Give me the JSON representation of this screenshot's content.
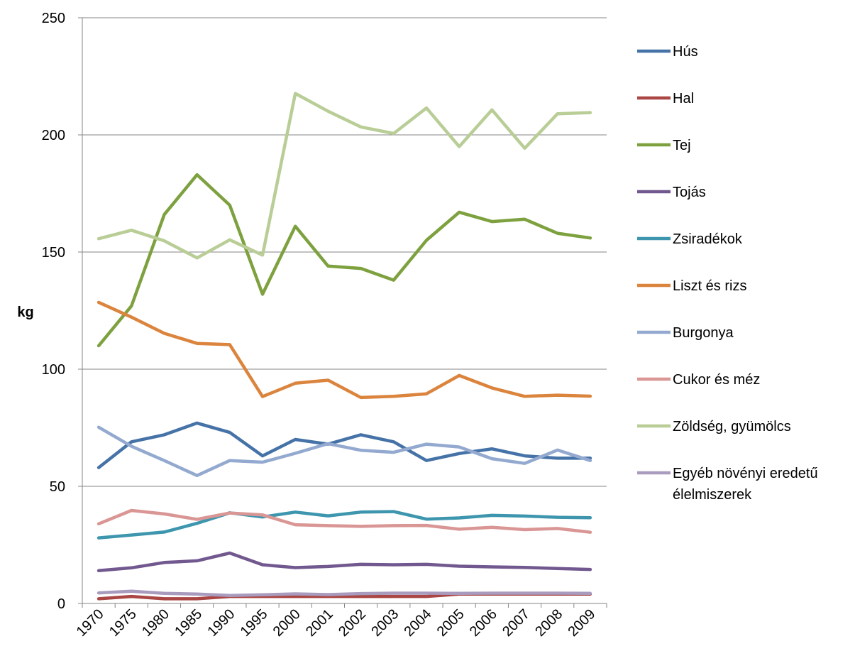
{
  "chart_data": {
    "type": "line",
    "ylabel": "kg",
    "xlabel": "",
    "ylim": [
      0,
      250
    ],
    "yticks": [
      0,
      50,
      100,
      150,
      200,
      250
    ],
    "categories": [
      "1970",
      "1975",
      "1980",
      "1985",
      "1990",
      "1995",
      "2000",
      "2001",
      "2002",
      "2003",
      "2004",
      "2005",
      "2006",
      "2007",
      "2008",
      "2009"
    ],
    "grid": "horizontal",
    "legend_position": "right",
    "series": [
      {
        "name": "Hús",
        "color": "#4572A7",
        "values": [
          58,
          69,
          72,
          77,
          73,
          63,
          70,
          68,
          72,
          69,
          61,
          64,
          66,
          63,
          62,
          62
        ]
      },
      {
        "name": "Hal",
        "color": "#AA4643",
        "values": [
          2,
          3,
          2,
          2,
          3,
          3,
          3,
          3,
          3,
          3,
          3,
          4,
          4,
          4,
          4,
          4
        ]
      },
      {
        "name": "Tej",
        "color": "#7EA13F",
        "values": [
          110,
          127,
          166,
          183,
          170,
          132,
          161,
          144,
          143,
          138,
          155,
          167,
          163,
          164,
          158,
          156
        ]
      },
      {
        "name": "Tojás",
        "color": "#71588F",
        "values": [
          14,
          15.2,
          17.5,
          18.2,
          21.5,
          16.5,
          15.3,
          15.8,
          16.7,
          16.5,
          16.7,
          15.9,
          15.6,
          15.4,
          14.9,
          14.5
        ]
      },
      {
        "name": "Zsiradékok",
        "color": "#3D96AE",
        "values": [
          28,
          29.2,
          30.5,
          34.2,
          38.7,
          36.9,
          39,
          37.4,
          39,
          39.2,
          36,
          36.5,
          37.6,
          37.3,
          36.8,
          36.6
        ]
      },
      {
        "name": "Liszt és rizs",
        "color": "#DB843D",
        "values": [
          128.5,
          122.2,
          115.3,
          111,
          110.5,
          88.3,
          94,
          95.3,
          87.9,
          88.4,
          89.5,
          97.3,
          92,
          88.4,
          88.9,
          88.5
        ]
      },
      {
        "name": "Burgonya",
        "color": "#93A9CF",
        "values": [
          75.2,
          67.1,
          61,
          54.6,
          61,
          60.3,
          64.1,
          68.2,
          65.4,
          64.5,
          68,
          66.8,
          61.8,
          59.8,
          65.5,
          61
        ]
      },
      {
        "name": "Cukor és méz",
        "color": "#D99694",
        "values": [
          34,
          39.7,
          38.2,
          35.9,
          38.6,
          37.8,
          33.6,
          33.2,
          32.9,
          33.2,
          33.3,
          31.7,
          32.5,
          31.5,
          32,
          30.4
        ]
      },
      {
        "name": "Zöldség, gyümölcs",
        "color": "#B9CD96",
        "values": [
          155.7,
          159.3,
          154.8,
          147.5,
          155.2,
          148.7,
          217.7,
          210.1,
          203.4,
          200.6,
          211.5,
          195,
          210.7,
          194.3,
          209,
          209.5
        ]
      },
      {
        "name": "Egyéb növényi eredetű élelmiszerek",
        "legend_lines": [
          "Egyéb növényi eredetű",
          "élelmiszerek"
        ],
        "color": "#A99BBD",
        "values": [
          4.5,
          5.2,
          4.3,
          4,
          3.4,
          3.7,
          4.1,
          3.8,
          4.2,
          4.4,
          4.4,
          4.3,
          4.4,
          4.4,
          4.4,
          4.3
        ]
      }
    ]
  }
}
